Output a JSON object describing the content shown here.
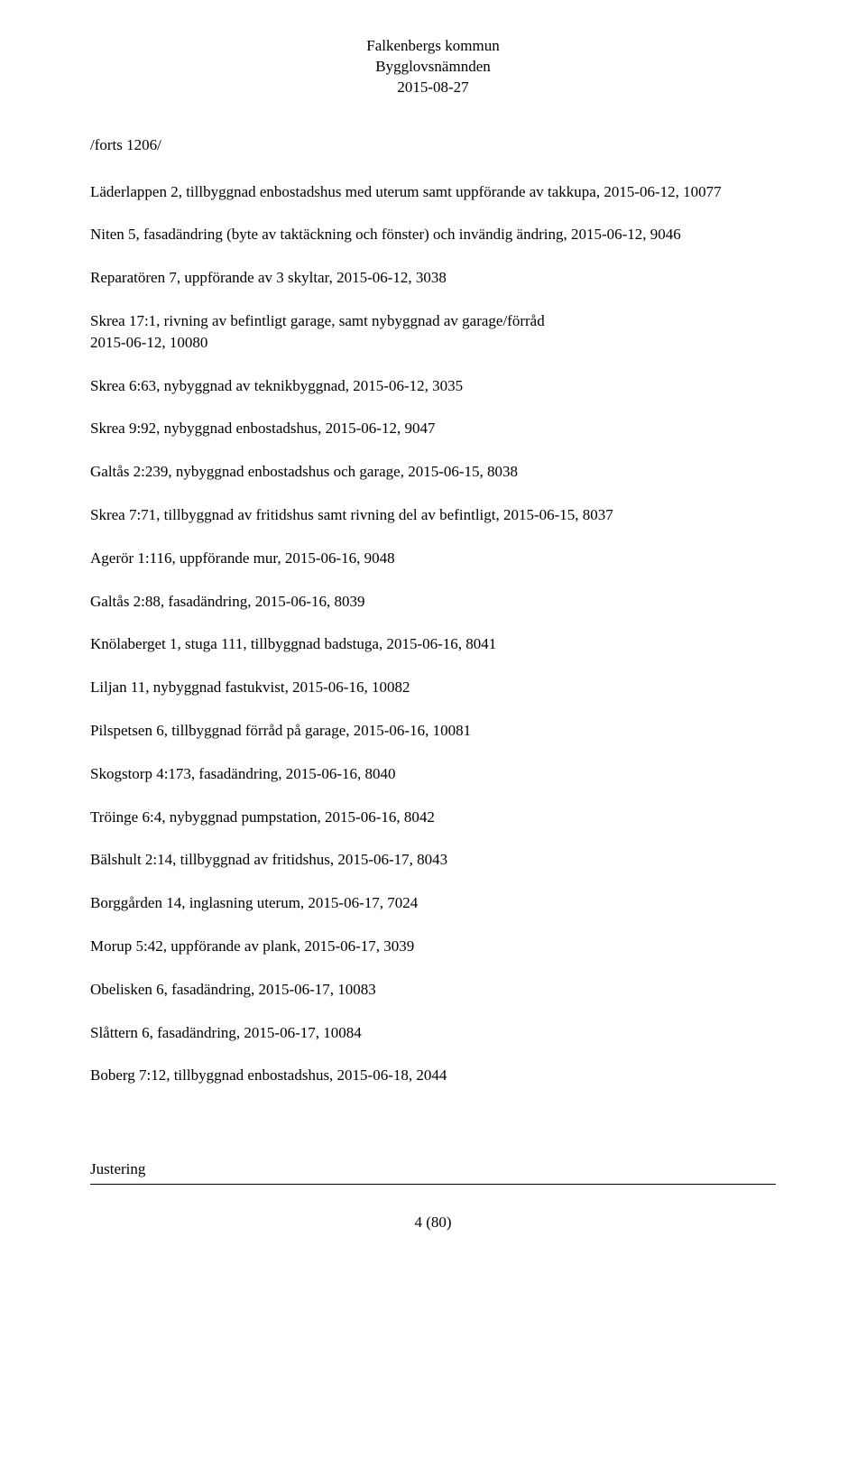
{
  "header": {
    "line1": "Falkenbergs kommun",
    "line2": "Bygglovsnämnden",
    "line3": "2015-08-27"
  },
  "section_heading": "/forts 1206/",
  "entries": [
    "Läderlappen 2, tillbyggnad enbostadshus med uterum samt uppförande av takkupa, 2015-06-12, 10077",
    "Niten 5, fasadändring (byte av taktäckning och fönster) och invändig ändring, 2015-06-12, 9046",
    "Reparatören 7, uppförande av 3 skyltar, 2015-06-12, 3038",
    "Skrea 17:1, rivning av befintligt garage, samt nybyggnad av garage/förråd\n2015-06-12, 10080",
    "Skrea 6:63, nybyggnad av teknikbyggnad, 2015-06-12, 3035",
    "Skrea 9:92, nybyggnad enbostadshus, 2015-06-12, 9047",
    "Galtås 2:239, nybyggnad enbostadshus och garage, 2015-06-15, 8038",
    "Skrea 7:71, tillbyggnad av fritidshus samt rivning del av befintligt, 2015-06-15, 8037",
    "Agerör 1:116, uppförande mur, 2015-06-16, 9048",
    "Galtås 2:88, fasadändring, 2015-06-16, 8039",
    "Knölaberget 1, stuga 111, tillbyggnad badstuga, 2015-06-16, 8041",
    "Liljan 11, nybyggnad fastukvist, 2015-06-16, 10082",
    "Pilspetsen 6, tillbyggnad förråd på garage, 2015-06-16, 10081",
    "Skogstorp 4:173, fasadändring, 2015-06-16, 8040",
    "Tröinge 6:4, nybyggnad pumpstation, 2015-06-16, 8042",
    "Bälshult 2:14, tillbyggnad av fritidshus, 2015-06-17, 8043",
    "Borggården 14, inglasning uterum, 2015-06-17, 7024",
    "Morup 5:42, uppförande av plank, 2015-06-17, 3039",
    "Obelisken 6, fasadändring, 2015-06-17, 10083",
    "Slåttern 6, fasadändring, 2015-06-17, 10084",
    "Boberg 7:12, tillbyggnad enbostadshus, 2015-06-18, 2044"
  ],
  "footer": {
    "label": "Justering",
    "page": "4 (80)"
  }
}
